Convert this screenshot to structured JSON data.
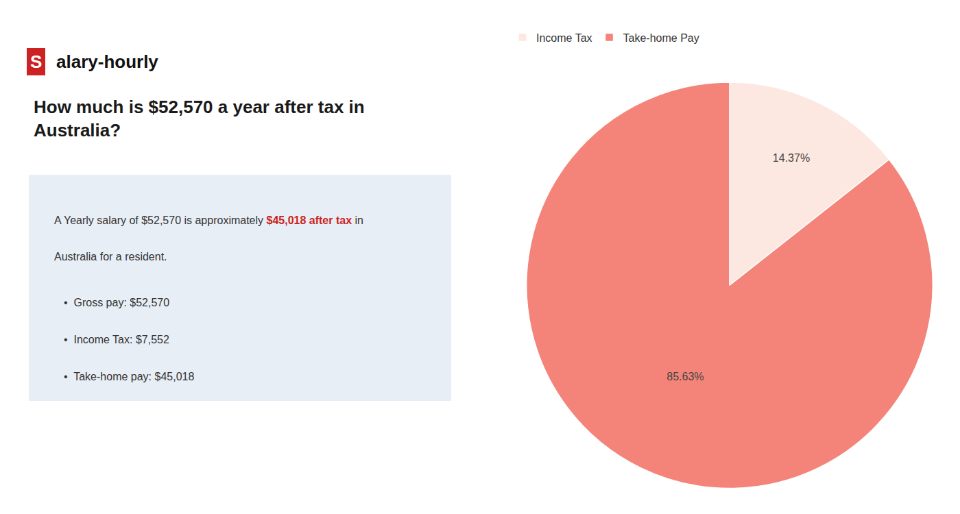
{
  "chart_data": {
    "type": "pie",
    "title": "How much is $52,570 a year after tax in\nAustralia?",
    "categories": [
      "Income Tax",
      "Take-home Pay"
    ],
    "values": [
      14.37,
      85.63
    ],
    "value_labels": [
      "14.37%",
      "85.63%"
    ],
    "colors": [
      "#fce8e0",
      "#f4847a"
    ],
    "data_labels": true,
    "legend": "upper left",
    "annotations": [
      [
        {
          "text": "S",
          "color": "#cc2222"
        },
        {
          "text": "alary-hourly"
        }
      ],
      [
        {
          "text": "A Yearly salary of $52,570 is approximately "
        },
        {
          "text": "$45,018 after tax",
          "color": "#cc2222"
        },
        {
          "text": " in"
        }
      ],
      [
        {
          "text": "Australia for a resident."
        }
      ],
      [
        {
          "text": "•  Gross pay: $52,570"
        }
      ],
      [
        {
          "text": "•  Income Tax: $7,552"
        }
      ],
      [
        {
          "text": "•  Take-home pay: $45,018"
        }
      ]
    ]
  }
}
